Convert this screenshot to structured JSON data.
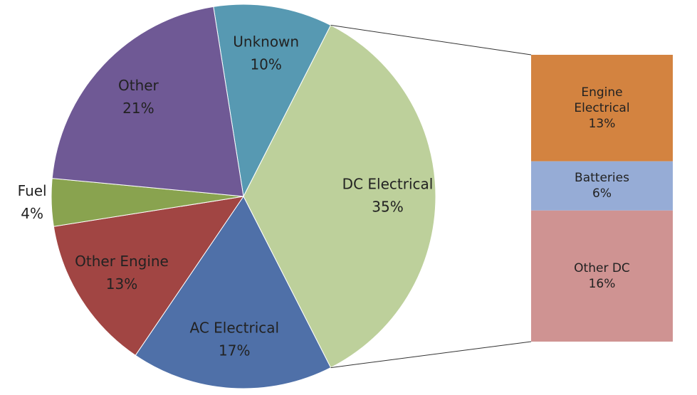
{
  "chart_data": {
    "type": "pie-of-bar",
    "categories": [
      "Unknown",
      "DC Electrical",
      "AC Electrical",
      "Other Engine",
      "Fuel",
      "Other"
    ],
    "values": [
      10,
      35,
      17,
      13,
      4,
      21
    ],
    "value_labels": [
      "10%",
      "35%",
      "17%",
      "13%",
      "4%",
      "21%"
    ],
    "colors": [
      "#5799b2",
      "#bdd09b",
      "#4f70a8",
      "#a14543",
      "#89a34f",
      "#6f5995"
    ],
    "breakout": {
      "categories": [
        "Engine Electrical",
        "Batteries",
        "Other DC"
      ],
      "values": [
        13,
        6,
        16
      ],
      "value_labels": [
        "13%",
        "6%",
        "16%"
      ],
      "colors": [
        "#d38340",
        "#96acd6",
        "#cf9392"
      ]
    }
  }
}
